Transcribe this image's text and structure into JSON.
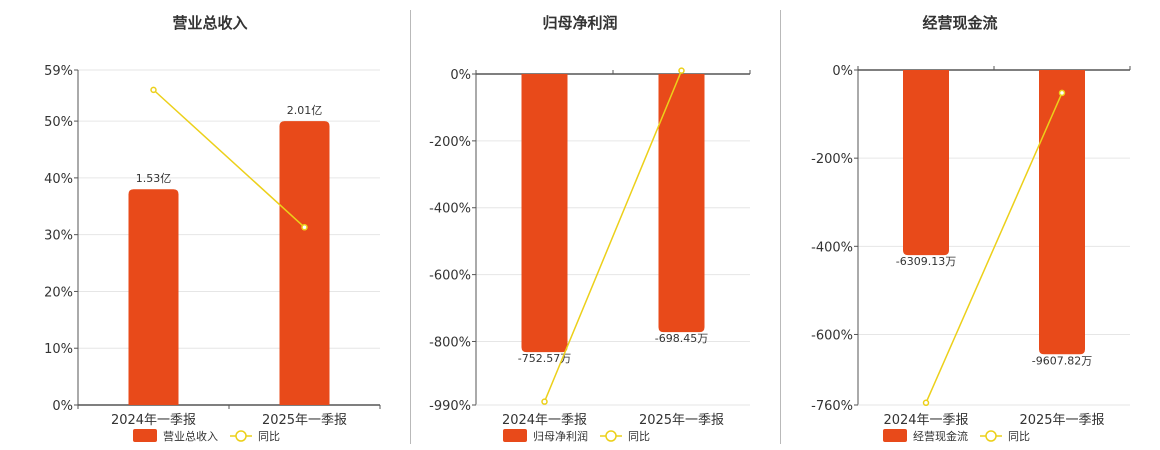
{
  "colors": {
    "bar": "#e84a1a",
    "line": "#ecd01a",
    "grid": "#e6e6e6",
    "axis": "#555555",
    "divider": "#b9b9b9"
  },
  "chart_data": [
    {
      "type": "bar",
      "title": "营业总收入",
      "categories": [
        "2024年一季报",
        "2025年一季报"
      ],
      "series": [
        {
          "name": "营业总收入",
          "kind": "bar",
          "values": [
            38,
            50
          ],
          "labels": [
            "1.53亿",
            "2.01亿"
          ]
        },
        {
          "name": "同比",
          "kind": "line",
          "values": [
            55.5,
            31.3
          ]
        }
      ],
      "ylim": [
        0,
        59
      ],
      "yticks": [
        0,
        10,
        20,
        30,
        40,
        50,
        59
      ],
      "grid": true,
      "legend": "bottom"
    },
    {
      "type": "bar",
      "title": "归母净利润",
      "categories": [
        "2024年一季报",
        "2025年一季报"
      ],
      "series": [
        {
          "name": "归母净利润",
          "kind": "bar",
          "values": [
            -832,
            -772
          ],
          "labels": [
            "-752.57万",
            "-698.45万"
          ]
        },
        {
          "name": "同比",
          "kind": "line",
          "values": [
            -980,
            10
          ]
        }
      ],
      "ylim": [
        -990,
        0
      ],
      "yticks": [
        0,
        -200,
        -400,
        -600,
        -800,
        -990
      ],
      "grid": true,
      "legend": "bottom"
    },
    {
      "type": "bar",
      "title": "经营现金流",
      "categories": [
        "2024年一季报",
        "2025年一季报"
      ],
      "series": [
        {
          "name": "经营现金流",
          "kind": "bar",
          "values": [
            -420,
            -645
          ],
          "labels": [
            "-6309.13万",
            "-9607.82万"
          ]
        },
        {
          "name": "同比",
          "kind": "line",
          "values": [
            -755,
            -52
          ]
        }
      ],
      "ylim": [
        -760,
        0
      ],
      "yticks": [
        0,
        -200,
        -400,
        -600,
        -760
      ],
      "grid": true,
      "legend": "bottom"
    }
  ]
}
